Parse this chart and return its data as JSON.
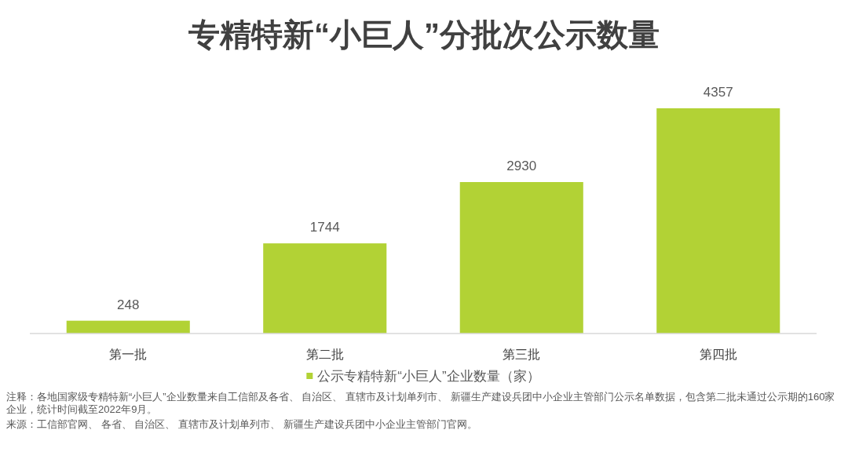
{
  "chart_data": {
    "type": "bar",
    "title": "专精特新“小巨人”分批次公示数量",
    "categories": [
      "第一批",
      "第二批",
      "第三批",
      "第四批"
    ],
    "series": [
      {
        "name": "公示专精特新“小巨人”企业数量（家）",
        "color": "#b2d235",
        "values": [
          248,
          1744,
          2930,
          4357
        ]
      }
    ],
    "data_labels": true,
    "legend": "bottom",
    "annotations": [
      "注释：各地国家级专精特新“小巨人”企业数量来自工信部及各省、 自治区、 直辖市及计划单列市、 新疆生产建设兵团中小企业主管部门公示名单数据，包含第二批未通过公示期的160家企业，统计时间截至2022年9月。",
      "来源：工信部官网、 各省、 自治区、 直辖市及计划单列市、 新疆生产建设兵团中小企业主管部门官网。"
    ]
  }
}
